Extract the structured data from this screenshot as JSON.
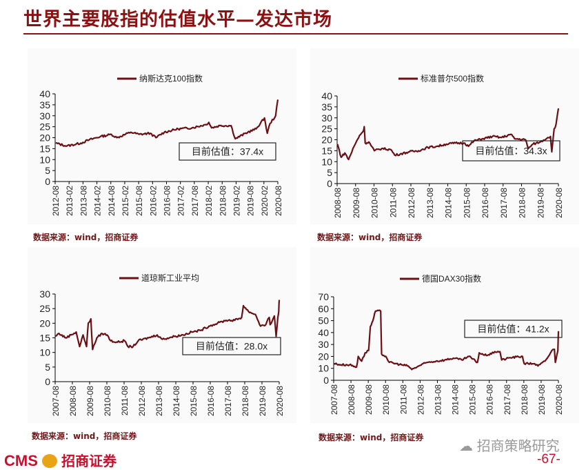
{
  "page": {
    "title": "世界主要股指的估值水平—发达市场",
    "logo_en": "CMS",
    "logo_cn": "招商证券",
    "wechat": "招商策略研究",
    "page_number": "-67-",
    "line_color": "#6b0f14",
    "accent": "#8b1212"
  },
  "chart_data": [
    {
      "type": "line",
      "title": "",
      "legend": "纳斯达克100指数",
      "legend_position": "top-center",
      "annotation": "目前估值：37.4x",
      "source": "数据来源：wind，招商证券",
      "ylim": [
        0,
        40
      ],
      "yticks": [
        0,
        5,
        10,
        15,
        20,
        25,
        30,
        35,
        40
      ],
      "xlim": [
        2012.58,
        2020.58
      ],
      "xticks": [
        "2012-08",
        "2013-02",
        "2013-08",
        "2014-02",
        "2014-08",
        "2015-02",
        "2015-08",
        "2016-02",
        "2016-08",
        "2017-02",
        "2017-08",
        "2018-02",
        "2018-08",
        "2019-02",
        "2019-08",
        "2020-02",
        "2020-08"
      ],
      "series": [
        {
          "name": "纳斯达克100指数",
          "points": [
            [
              2012.6,
              17.5
            ],
            [
              2013.0,
              16.2
            ],
            [
              2013.5,
              17.5
            ],
            [
              2013.8,
              19
            ],
            [
              2014.2,
              20.5
            ],
            [
              2014.6,
              21.5
            ],
            [
              2014.8,
              20
            ],
            [
              2015.3,
              22.5
            ],
            [
              2015.6,
              21.5
            ],
            [
              2016.0,
              22
            ],
            [
              2016.2,
              20
            ],
            [
              2016.5,
              22.5
            ],
            [
              2017.0,
              24
            ],
            [
              2017.5,
              24.5
            ],
            [
              2018.0,
              26
            ],
            [
              2018.1,
              27
            ],
            [
              2018.2,
              24.5
            ],
            [
              2018.5,
              25.5
            ],
            [
              2018.9,
              25.5
            ],
            [
              2019.05,
              19.5
            ],
            [
              2019.5,
              22.5
            ],
            [
              2019.8,
              24
            ],
            [
              2020.1,
              29
            ],
            [
              2020.2,
              22
            ],
            [
              2020.3,
              26.5
            ],
            [
              2020.5,
              30
            ],
            [
              2020.58,
              37.4
            ]
          ]
        }
      ]
    },
    {
      "type": "line",
      "title": "",
      "legend": "标准普尔500指数",
      "legend_position": "top-center",
      "annotation": "目前估值：34.3x",
      "source": "数据来源：wind，招商证券",
      "ylim": [
        0,
        40
      ],
      "yticks": [
        0,
        5,
        10,
        15,
        20,
        25,
        30,
        35,
        40
      ],
      "xlim": [
        2008.58,
        2020.58
      ],
      "xticks": [
        "2008-08",
        "2009-08",
        "2010-08",
        "2011-08",
        "2012-08",
        "2013-08",
        "2014-08",
        "2015-08",
        "2016-08",
        "2017-08",
        "2018-08",
        "2019-08",
        "2020-08"
      ],
      "series": [
        {
          "name": "标准普尔500指数",
          "points": [
            [
              2008.6,
              18
            ],
            [
              2008.8,
              12
            ],
            [
              2009.0,
              14
            ],
            [
              2009.2,
              11
            ],
            [
              2009.5,
              17
            ],
            [
              2009.8,
              22
            ],
            [
              2010.0,
              24
            ],
            [
              2010.05,
              26
            ],
            [
              2010.1,
              18.5
            ],
            [
              2010.3,
              19
            ],
            [
              2010.6,
              15
            ],
            [
              2011.0,
              16
            ],
            [
              2011.5,
              15.5
            ],
            [
              2011.7,
              13
            ],
            [
              2012.0,
              13.5
            ],
            [
              2012.5,
              14.5
            ],
            [
              2013.0,
              15
            ],
            [
              2013.5,
              16.5
            ],
            [
              2014.0,
              17
            ],
            [
              2014.5,
              18
            ],
            [
              2015.0,
              18.5
            ],
            [
              2015.5,
              18.5
            ],
            [
              2015.7,
              17
            ],
            [
              2016.0,
              19.5
            ],
            [
              2016.5,
              20.5
            ],
            [
              2017.0,
              21.5
            ],
            [
              2017.5,
              21
            ],
            [
              2018.0,
              22.5
            ],
            [
              2018.2,
              20.5
            ],
            [
              2018.8,
              20
            ],
            [
              2018.95,
              16
            ],
            [
              2019.2,
              18
            ],
            [
              2019.6,
              19
            ],
            [
              2020.0,
              21
            ],
            [
              2020.15,
              21.5
            ],
            [
              2020.22,
              14.5
            ],
            [
              2020.35,
              25
            ],
            [
              2020.45,
              27
            ],
            [
              2020.58,
              34.3
            ]
          ]
        }
      ]
    },
    {
      "type": "line",
      "title": "",
      "legend": "道琼斯工业平均",
      "legend_position": "top-center",
      "annotation": "目前估值：28.0x",
      "source": "数据来源：wind，招商证券",
      "ylim": [
        0,
        30
      ],
      "yticks": [
        0,
        5,
        10,
        15,
        20,
        25,
        30
      ],
      "xlim": [
        2007.58,
        2020.58
      ],
      "xticks": [
        "2007-08",
        "2008-08",
        "2009-08",
        "2010-08",
        "2011-08",
        "2012-08",
        "2013-08",
        "2014-08",
        "2015-08",
        "2016-08",
        "2017-08",
        "2018-08",
        "2019-08",
        "2020-08"
      ],
      "series": [
        {
          "name": "道琼斯工业平均",
          "points": [
            [
              2007.6,
              15.5
            ],
            [
              2007.8,
              16.5
            ],
            [
              2008.2,
              15
            ],
            [
              2008.5,
              16
            ],
            [
              2008.8,
              17
            ],
            [
              2009.0,
              12
            ],
            [
              2009.2,
              16
            ],
            [
              2009.4,
              12
            ],
            [
              2009.5,
              20
            ],
            [
              2009.65,
              21.5
            ],
            [
              2009.75,
              11
            ],
            [
              2010.0,
              15
            ],
            [
              2010.3,
              16.5
            ],
            [
              2010.6,
              16
            ],
            [
              2010.8,
              14
            ],
            [
              2011.2,
              13.5
            ],
            [
              2011.6,
              14
            ],
            [
              2011.8,
              12
            ],
            [
              2012.1,
              12
            ],
            [
              2012.4,
              14
            ],
            [
              2013.0,
              15
            ],
            [
              2013.5,
              16
            ],
            [
              2013.8,
              14.5
            ],
            [
              2014.5,
              15.5
            ],
            [
              2015.0,
              16
            ],
            [
              2015.5,
              17
            ],
            [
              2016.0,
              17.5
            ],
            [
              2016.5,
              19
            ],
            [
              2017.0,
              20
            ],
            [
              2017.5,
              21
            ],
            [
              2018.0,
              21
            ],
            [
              2018.4,
              22
            ],
            [
              2018.5,
              26
            ],
            [
              2018.8,
              24
            ],
            [
              2019.2,
              23
            ],
            [
              2019.5,
              19
            ],
            [
              2019.8,
              19.5
            ],
            [
              2020.0,
              22
            ],
            [
              2020.05,
              19.5
            ],
            [
              2020.3,
              22.5
            ],
            [
              2020.4,
              15.5
            ],
            [
              2020.5,
              22
            ],
            [
              2020.55,
              24
            ],
            [
              2020.58,
              28.0
            ]
          ]
        }
      ]
    },
    {
      "type": "line",
      "title": "",
      "legend": "德国DAX30指数",
      "legend_position": "top-center",
      "annotation": "目前估值：41.2x",
      "source": "数据来源：wind，招商证券",
      "ylim": [
        0,
        70
      ],
      "yticks": [
        0,
        10,
        20,
        30,
        40,
        50,
        60,
        70
      ],
      "xlim": [
        2007.58,
        2020.58
      ],
      "xticks": [
        "2007-08",
        "2008-08",
        "2009-08",
        "2010-08",
        "2011-08",
        "2012-08",
        "2013-08",
        "2014-08",
        "2015-08",
        "2016-08",
        "2017-08",
        "2018-08",
        "2019-08",
        "2020-08"
      ],
      "series": [
        {
          "name": "德国DAX30指数",
          "points": [
            [
              2007.6,
              14
            ],
            [
              2008.0,
              13
            ],
            [
              2008.5,
              13
            ],
            [
              2008.9,
              11
            ],
            [
              2009.0,
              20
            ],
            [
              2009.2,
              16
            ],
            [
              2009.4,
              23
            ],
            [
              2009.6,
              25
            ],
            [
              2009.7,
              45
            ],
            [
              2009.85,
              50
            ],
            [
              2010.0,
              58
            ],
            [
              2010.3,
              58
            ],
            [
              2010.35,
              22
            ],
            [
              2010.6,
              20
            ],
            [
              2010.8,
              15
            ],
            [
              2011.5,
              13
            ],
            [
              2011.9,
              12
            ],
            [
              2012.1,
              9
            ],
            [
              2012.5,
              12
            ],
            [
              2013.0,
              15
            ],
            [
              2013.5,
              16
            ],
            [
              2014.0,
              17
            ],
            [
              2014.5,
              18.5
            ],
            [
              2015.0,
              17
            ],
            [
              2015.4,
              20
            ],
            [
              2015.9,
              15
            ],
            [
              2016.0,
              23
            ],
            [
              2016.3,
              21
            ],
            [
              2016.7,
              22
            ],
            [
              2016.9,
              24
            ],
            [
              2017.2,
              24
            ],
            [
              2017.3,
              17
            ],
            [
              2017.8,
              19
            ],
            [
              2018.5,
              20
            ],
            [
              2018.6,
              14
            ],
            [
              2019.2,
              14
            ],
            [
              2019.4,
              12
            ],
            [
              2019.8,
              16
            ],
            [
              2020.0,
              20
            ],
            [
              2020.2,
              25
            ],
            [
              2020.35,
              26
            ],
            [
              2020.4,
              15
            ],
            [
              2020.5,
              22
            ],
            [
              2020.55,
              25
            ],
            [
              2020.58,
              41.2
            ]
          ]
        }
      ]
    }
  ]
}
